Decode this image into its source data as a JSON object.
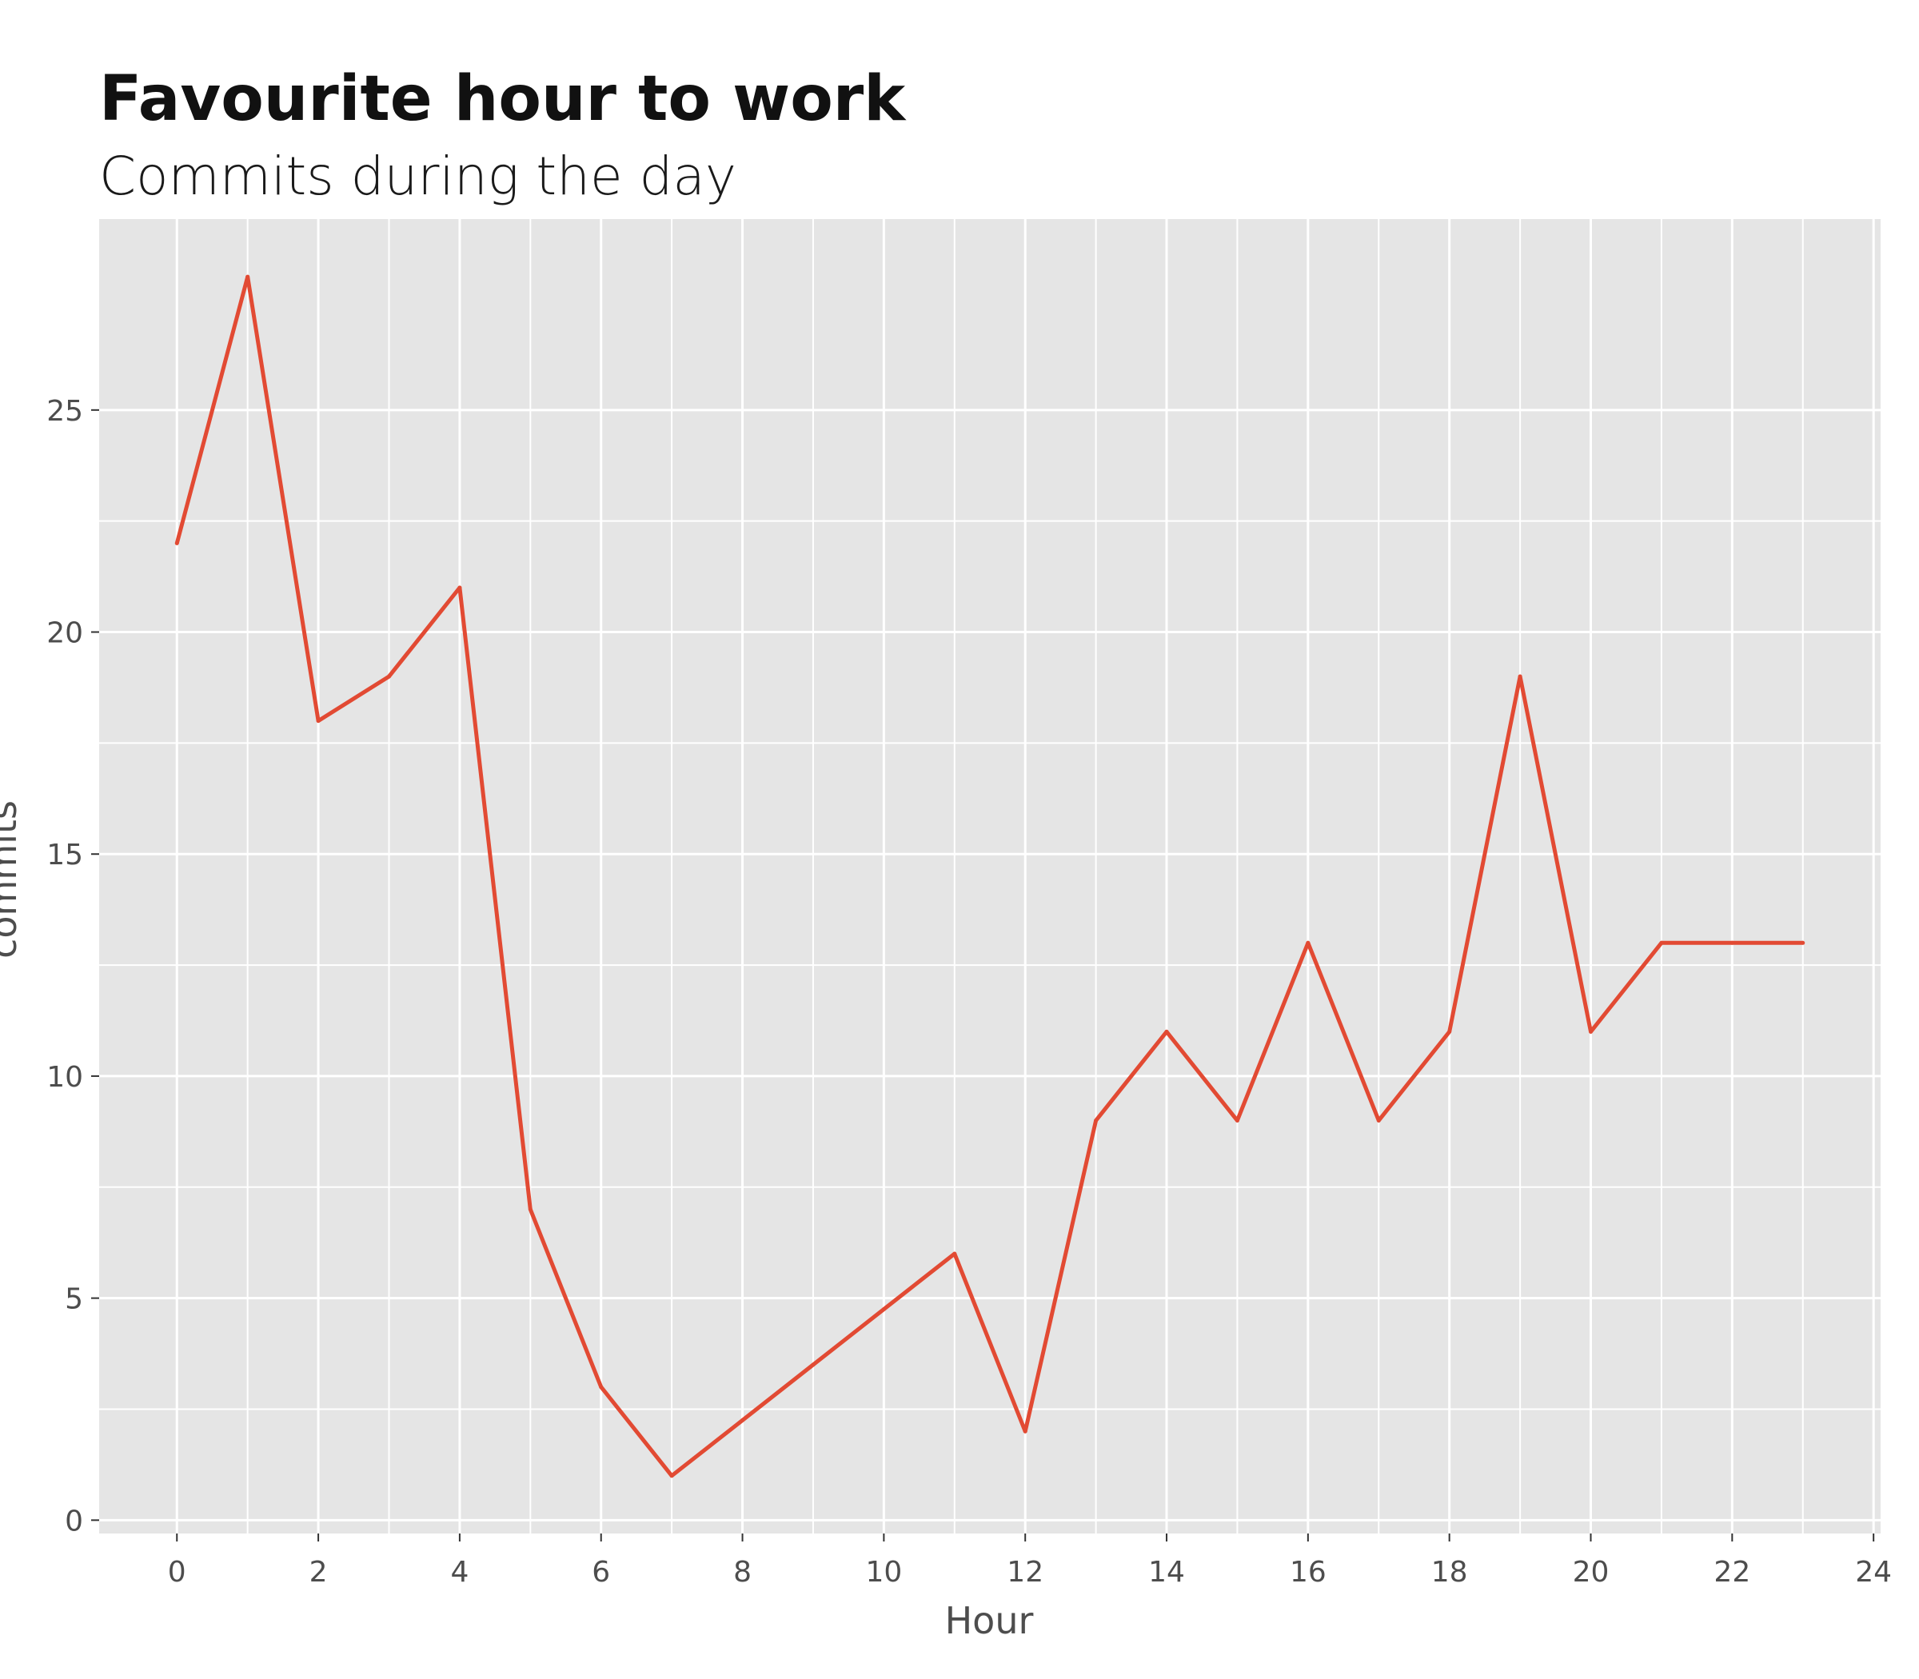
{
  "chart_data": {
    "type": "line",
    "title": "Favourite hour to work",
    "subtitle": "Commits during the day",
    "xlabel": "Hour",
    "ylabel": "commits",
    "x": [
      0,
      1,
      2,
      3,
      4,
      5,
      6,
      7,
      8,
      9,
      10,
      11,
      12,
      13,
      14,
      15,
      16,
      17,
      18,
      19,
      20,
      21,
      22,
      23
    ],
    "series": [
      {
        "values": [
          22,
          28,
          18,
          19,
          21,
          7,
          3,
          1,
          2.25,
          3.5,
          4.75,
          6,
          2,
          9,
          11,
          9,
          13,
          9,
          11,
          19,
          11,
          13,
          13,
          13
        ]
      }
    ],
    "xticks": [
      0,
      2,
      4,
      6,
      8,
      10,
      12,
      14,
      16,
      18,
      20,
      22,
      24
    ],
    "yticks": [
      0,
      5,
      10,
      15,
      20,
      25
    ],
    "xlim": [
      -1.1,
      24.1
    ],
    "ylim": [
      -0.3,
      29.3
    ],
    "grid": true,
    "colors": {
      "line": "#e24a33",
      "panel": "#e5e5e5",
      "grid": "#ffffff"
    }
  }
}
